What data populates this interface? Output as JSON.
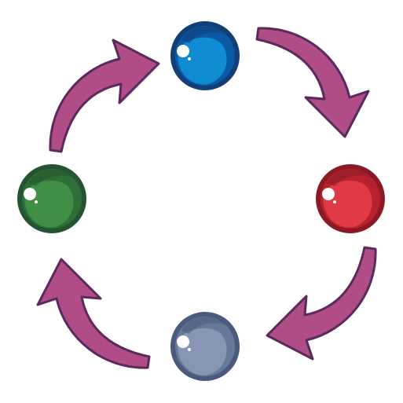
{
  "diagram": {
    "type": "cycle",
    "direction": "clockwise",
    "arrow_color": "#b14d86",
    "arrow_outline": "#5a2a5e",
    "nodes": [
      {
        "id": "top",
        "color": "blue",
        "fill": "#0e8bd3",
        "shade": "#0b5aa6",
        "dark": "#123f78"
      },
      {
        "id": "right",
        "color": "red",
        "fill": "#e03a45",
        "shade": "#b8222f",
        "dark": "#8c1a26"
      },
      {
        "id": "bottom",
        "color": "slate",
        "fill": "#8696b3",
        "shade": "#67799a",
        "dark": "#4a5a7d"
      },
      {
        "id": "left",
        "color": "green",
        "fill": "#3f8e44",
        "shade": "#2f6e36",
        "dark": "#245432"
      }
    ],
    "arrows": [
      {
        "from": "left",
        "to": "top"
      },
      {
        "from": "top",
        "to": "right"
      },
      {
        "from": "right",
        "to": "bottom"
      },
      {
        "from": "bottom",
        "to": "left"
      }
    ]
  }
}
